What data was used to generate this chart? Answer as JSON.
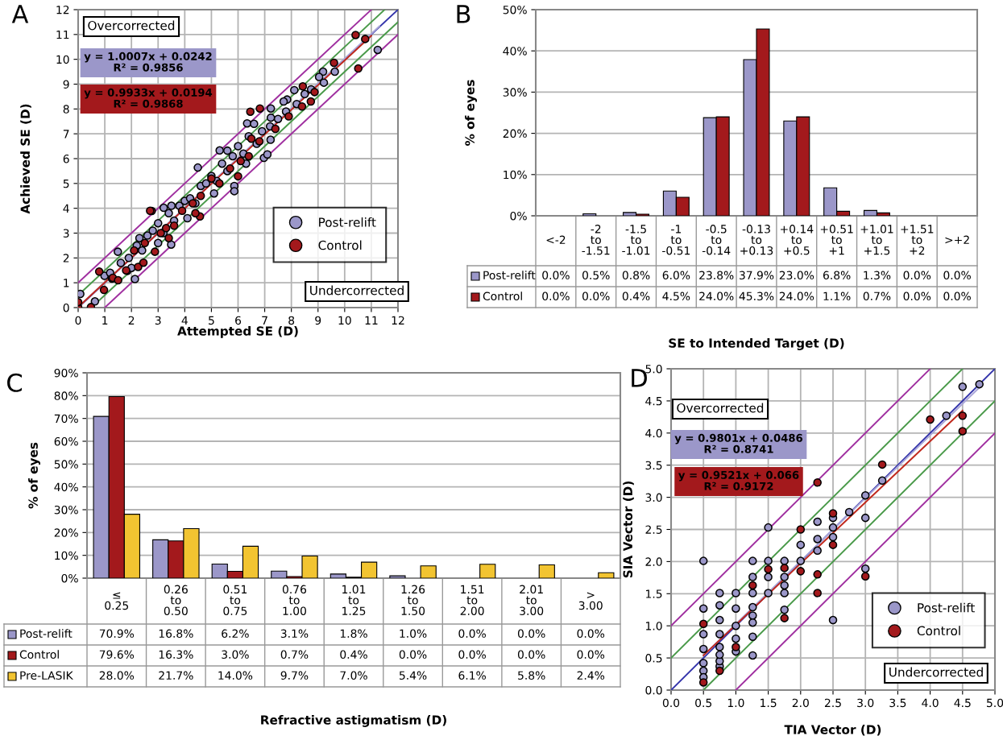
{
  "chart_data": [
    {
      "type": "scatter",
      "xlabel": "Attempted SE (D)",
      "ylabel": "Achieved SE (D)",
      "xlim": [
        0,
        12
      ],
      "ylim": [
        0,
        12
      ],
      "xticks": [
        0,
        1,
        2,
        3,
        4,
        5,
        6,
        7,
        8,
        9,
        10,
        11,
        12
      ],
      "yticks": [
        0,
        1,
        2,
        3,
        4,
        5,
        6,
        7,
        8,
        9,
        10,
        11,
        12
      ],
      "grid": true,
      "legend": "bottom right",
      "line_style": "solid",
      "annotations": [
        "A",
        "Overcorrected",
        "Undercorrected",
        "y = 1.0007x + 0.0242\nR² = 0.9856",
        "y = 0.9933x + 0.0194\nR² = 0.9868"
      ],
      "series": [
        {
          "type": "line",
          "color": "#3333aa",
          "x": [
            0,
            12
          ],
          "values": [
            0,
            12
          ]
        },
        {
          "type": "line",
          "color": "#4a9a4a",
          "x": [
            0,
            11.5
          ],
          "values": [
            0.5,
            12
          ]
        },
        {
          "type": "line",
          "color": "#4a9a4a",
          "x": [
            0.5,
            12
          ],
          "values": [
            0,
            11.5
          ]
        },
        {
          "type": "line",
          "color": "#a030a0",
          "x": [
            0,
            11
          ],
          "values": [
            1,
            12
          ]
        },
        {
          "type": "line",
          "color": "#a030a0",
          "x": [
            1,
            12
          ],
          "values": [
            0,
            11
          ]
        },
        {
          "name": "Post-relift",
          "type": "scatter",
          "marker": "circle",
          "color": "#9b97c9",
          "x": [
            11.24,
            9.63,
            9.19,
            9.04,
            9.22,
            8.74,
            8.11,
            7.84,
            7.71,
            7.23,
            7.23,
            6.34,
            7.22,
            6.97,
            7.1,
            4.49,
            5.31,
            5.6,
            5.86,
            5.86,
            3.49,
            2.13,
            3.21,
            0.08,
            0.63,
            0.99,
            1.49,
            1.27,
            1.85,
            1.2,
            1.6,
            1.9,
            2.2,
            2.4,
            2.6,
            2.8,
            3.0,
            3.2,
            3.4,
            3.6,
            3.8,
            4.0,
            4.2,
            4.4,
            4.6,
            4.8,
            5.0,
            5.2,
            5.4,
            5.6,
            5.8,
            6.0,
            6.2,
            6.4,
            6.6,
            6.7,
            6.9,
            7.2,
            7.5,
            7.8,
            8.2,
            8.5,
            3.0,
            2.0,
            4.1,
            5.1,
            6.3,
            3.5,
            2.3
          ],
          "values": [
            10.38,
            9.5,
            9.5,
            9.29,
            9.06,
            8.79,
            8.76,
            8.38,
            8.3,
            8.02,
            7.65,
            7.42,
            6.76,
            6.03,
            6.17,
            5.64,
            6.33,
            6.32,
            4.9,
            4.69,
            2.54,
            1.15,
            4.02,
            0.55,
            0.25,
            1.28,
            2.25,
            1.17,
            1.48,
            1.4,
            1.8,
            2.0,
            2.5,
            2.3,
            2.9,
            3.1,
            3.4,
            3.0,
            3.8,
            3.5,
            4.1,
            4.3,
            4.4,
            4.2,
            4.9,
            5.0,
            5.3,
            5.1,
            5.8,
            5.5,
            6.1,
            6.5,
            6.2,
            6.9,
            7.4,
            6.6,
            7.1,
            7.3,
            7.6,
            7.9,
            8.2,
            8.6,
            2.6,
            1.6,
            3.6,
            4.6,
            5.8,
            4.1,
            2.8
          ]
        },
        {
          "name": "Control",
          "type": "scatter",
          "marker": "circle",
          "color": "#a3191c",
          "x": [
            10.77,
            10.41,
            10.51,
            9.6,
            8.87,
            8.43,
            8.73,
            6.46,
            6.82,
            6.0,
            4.57,
            2.76,
            2.88,
            0.48,
            0,
            0,
            0.79,
            0.97,
            2.25,
            2.45,
            1.3,
            1.8,
            2.1,
            2.5,
            2.7,
            3.1,
            3.3,
            3.6,
            3.9,
            4.3,
            4.6,
            5.0,
            5.3,
            5.7,
            6.1,
            6.5,
            6.8,
            7.4,
            7.9,
            8.4,
            4.4,
            3.4,
            6.4,
            1.5
          ],
          "values": [
            10.82,
            10.98,
            9.63,
            9.86,
            8.68,
            8.91,
            8.3,
            7.89,
            8.02,
            5.29,
            3.67,
            3.89,
            2.25,
            0.02,
            0.02,
            0.22,
            1.45,
            0.71,
            1.64,
            1.81,
            1.2,
            1.5,
            2.3,
            2.6,
            3.9,
            3.0,
            3.2,
            3.3,
            3.9,
            4.2,
            4.5,
            5.2,
            5.0,
            5.6,
            5.9,
            6.8,
            6.7,
            7.2,
            7.7,
            8.1,
            3.8,
            2.8,
            6.1,
            1.1
          ]
        },
        {
          "type": "line",
          "color": "#a9a5d8",
          "x": [
            0,
            11.3
          ],
          "values": [
            0.02,
            11.33
          ]
        },
        {
          "type": "line",
          "color": "#c0281c",
          "x": [
            0,
            11
          ],
          "values": [
            0.02,
            10.95
          ]
        }
      ]
    },
    {
      "type": "bar",
      "xlabel": "SE to Intended Target (D)",
      "ylabel": "% of eyes",
      "ylim": [
        0,
        50
      ],
      "yticks": [
        {
          "value": 0,
          "label": "0%"
        },
        {
          "value": 10,
          "label": "10%"
        },
        {
          "value": 20,
          "label": "20%"
        },
        {
          "value": 30,
          "label": "30%"
        },
        {
          "value": 40,
          "label": "40%"
        },
        {
          "value": 50,
          "label": "50%"
        }
      ],
      "grid": "y",
      "legend": "bottom left",
      "annotations": [
        "B"
      ],
      "categories": [
        "<-2",
        "-2\nto\n-1.51",
        "-1.5\nto\n-1.01",
        "-1\nto\n-0.51",
        "-0.5\nto\n-0.14",
        "-0.13\nto\n+0.13",
        "+0.14\nto\n+0.5",
        "+0.51\nto\n+1",
        "+1.01\nto\n+1.5",
        "+1.51\nto\n+2",
        ">+2"
      ],
      "series": [
        {
          "name": "Post-relift",
          "color": "#9b97c9",
          "values": [
            0.0,
            0.5,
            0.8,
            6.0,
            23.8,
            37.9,
            23.0,
            6.8,
            1.3,
            0.0,
            0.0
          ],
          "value_labels": [
            "0.0%",
            "0.5%",
            "0.8%",
            "6.0%",
            "23.8%",
            "37.9%",
            "23.0%",
            "6.8%",
            "1.3%",
            "0.0%",
            "0.0%"
          ]
        },
        {
          "name": "Control",
          "color": "#a3191c",
          "values": [
            0.0,
            0.0,
            0.4,
            4.5,
            24.0,
            45.3,
            24.0,
            1.1,
            0.7,
            0.0,
            0.0
          ],
          "value_labels": [
            "0.0%",
            "0.0%",
            "0.4%",
            "4.5%",
            "24.0%",
            "45.3%",
            "24.0%",
            "1.1%",
            "0.7%",
            "0.0%",
            "0.0%"
          ]
        }
      ]
    },
    {
      "type": "bar",
      "xlabel": "Refractive astigmatism (D)",
      "ylabel": "% of eyes",
      "ylim": [
        0,
        90
      ],
      "yticks": [
        {
          "value": 0,
          "label": "0%"
        },
        {
          "value": 10,
          "label": "10%"
        },
        {
          "value": 20,
          "label": "20%"
        },
        {
          "value": 30,
          "label": "30%"
        },
        {
          "value": 40,
          "label": "40%"
        },
        {
          "value": 50,
          "label": "50%"
        },
        {
          "value": 60,
          "label": "60%"
        },
        {
          "value": 70,
          "label": "70%"
        },
        {
          "value": 80,
          "label": "80%"
        },
        {
          "value": 90,
          "label": "90%"
        }
      ],
      "grid": "y",
      "legend": "bottom left",
      "annotations": [
        "C"
      ],
      "categories": [
        "≤\n0.25",
        "0.26\nto\n0.50",
        "0.51\nto\n0.75",
        "0.76\nto\n1.00",
        "1.01\nto\n1.25",
        "1.26\nto\n1.50",
        "1.51\nto\n2.00",
        "2.01\nto\n3.00",
        ">\n3.00"
      ],
      "series": [
        {
          "name": "Post-relift",
          "color": "#9b97c9",
          "values": [
            70.9,
            16.8,
            6.2,
            3.1,
            1.8,
            1.0,
            0.0,
            0.0,
            0.0
          ],
          "value_labels": [
            "70.9%",
            "16.8%",
            "6.2%",
            "3.1%",
            "1.8%",
            "1.0%",
            "0.0%",
            "0.0%",
            "0.0%"
          ]
        },
        {
          "name": "Control",
          "color": "#a3191c",
          "values": [
            79.6,
            16.3,
            3.0,
            0.7,
            0.4,
            0.0,
            0.0,
            0.0,
            0.0
          ],
          "value_labels": [
            "79.6%",
            "16.3%",
            "3.0%",
            "0.7%",
            "0.4%",
            "0.0%",
            "0.0%",
            "0.0%",
            "0.0%"
          ]
        },
        {
          "name": "Pre-LASIK",
          "color": "#f2c431",
          "values": [
            28.0,
            21.7,
            14.0,
            9.7,
            7.0,
            5.4,
            6.1,
            5.8,
            2.4
          ],
          "value_labels": [
            "28.0%",
            "21.7%",
            "14.0%",
            "9.7%",
            "7.0%",
            "5.4%",
            "6.1%",
            "5.8%",
            "2.4%"
          ]
        }
      ]
    },
    {
      "type": "scatter",
      "xlabel": "TIA Vector (D)",
      "ylabel": "SIA Vector (D)",
      "xlim": [
        0,
        5
      ],
      "ylim": [
        0,
        5
      ],
      "xticks": [
        {
          "value": 0,
          "label": "0.0"
        },
        {
          "value": 0.5,
          "label": "0.5"
        },
        {
          "value": 1,
          "label": "1.0"
        },
        {
          "value": 1.5,
          "label": "1.5"
        },
        {
          "value": 2,
          "label": "2.0"
        },
        {
          "value": 2.5,
          "label": "2.5"
        },
        {
          "value": 3,
          "label": "3.0"
        },
        {
          "value": 3.5,
          "label": "3.5"
        },
        {
          "value": 4,
          "label": "4.0"
        },
        {
          "value": 4.5,
          "label": "4.5"
        },
        {
          "value": 5,
          "label": "5.0"
        }
      ],
      "yticks": [
        {
          "value": 0,
          "label": "0.0"
        },
        {
          "value": 0.5,
          "label": "0.5"
        },
        {
          "value": 1,
          "label": "1.0"
        },
        {
          "value": 1.5,
          "label": "1.5"
        },
        {
          "value": 2,
          "label": "2.0"
        },
        {
          "value": 2.5,
          "label": "2.5"
        },
        {
          "value": 3,
          "label": "3.0"
        },
        {
          "value": 3.5,
          "label": "3.5"
        },
        {
          "value": 4,
          "label": "4.0"
        },
        {
          "value": 4.5,
          "label": "4.5"
        },
        {
          "value": 5,
          "label": "5.0"
        }
      ],
      "grid": true,
      "legend": "bottom right",
      "line_style": "solid",
      "annotations": [
        "D",
        "Overcorrected",
        "Undercorrected",
        "y = 0.9801x + 0.0486\nR² = 0.8741",
        "y = 0.9521x + 0.066\nR² = 0.9172"
      ],
      "series": [
        {
          "type": "line",
          "color": "#3333aa",
          "x": [
            0,
            5
          ],
          "values": [
            0,
            5
          ]
        },
        {
          "type": "line",
          "color": "#4a9a4a",
          "x": [
            0,
            4.5
          ],
          "values": [
            0.5,
            5
          ]
        },
        {
          "type": "line",
          "color": "#4a9a4a",
          "x": [
            0.5,
            5
          ],
          "values": [
            0,
            4.5
          ]
        },
        {
          "type": "line",
          "color": "#a030a0",
          "x": [
            0,
            4
          ],
          "values": [
            1,
            5
          ]
        },
        {
          "type": "line",
          "color": "#a030a0",
          "x": [
            1,
            5
          ],
          "values": [
            0,
            4
          ]
        },
        {
          "name": "Post-relift",
          "type": "scatter",
          "marker": "circle",
          "color": "#9b97c9",
          "x": [
            4.76,
            4.5,
            4.25,
            3.26,
            3.0,
            3.0,
            3.0,
            2.75,
            2.5,
            2.5,
            2.5,
            2.5,
            2.26,
            2.26,
            2.26,
            2.0,
            2.0,
            1.5,
            1.5,
            1.5,
            1.5,
            1.75,
            1.75,
            1.75,
            1.75,
            1.75,
            1.26,
            1.26,
            1.26,
            1.26,
            1.26,
            1.26,
            1.26,
            1.26,
            1.0,
            1.0,
            1.0,
            1.0,
            1.0,
            0.75,
            0.75,
            0.75,
            0.75,
            0.75,
            0.75,
            0.75,
            0.75,
            0.5,
            0.5,
            0.5,
            0.5,
            0.5,
            0.5,
            0.5
          ],
          "values": [
            4.76,
            4.72,
            4.27,
            3.26,
            3.03,
            2.68,
            1.89,
            2.77,
            2.68,
            2.53,
            2.38,
            1.09,
            2.62,
            2.35,
            2.17,
            2.26,
            2.01,
            2.53,
            2.01,
            1.76,
            1.51,
            2.01,
            1.76,
            1.63,
            1.51,
            1.25,
            2.01,
            1.76,
            1.51,
            1.29,
            1.16,
            1.05,
            0.83,
            0.54,
            1.51,
            1.27,
            1.0,
            0.8,
            0.6,
            1.51,
            1.32,
            1.09,
            0.87,
            0.67,
            0.37,
            0.45,
            0.55,
            2.01,
            1.27,
            0.87,
            0.64,
            0.42,
            0.3,
            0.2
          ]
        },
        {
          "name": "Control",
          "type": "scatter",
          "marker": "circle",
          "color": "#a3191c",
          "x": [
            4.5,
            4.5,
            4.0,
            3.26,
            2.26,
            3.0,
            2.5,
            2.5,
            2.26,
            2.26,
            2.0,
            2.0,
            1.5,
            1.75,
            1.75,
            1.26,
            1.0,
            0.5,
            0.5,
            0.75
          ],
          "values": [
            4.27,
            4.03,
            4.21,
            3.51,
            3.23,
            1.77,
            2.75,
            2.26,
            1.8,
            1.51,
            2.5,
            1.85,
            1.88,
            1.9,
            1.12,
            1.63,
            0.67,
            1.03,
            0.12,
            0.3
          ]
        },
        {
          "type": "line",
          "color": "#a9a5d8",
          "x": [
            0.5,
            4.75
          ],
          "values": [
            0.54,
            4.7
          ]
        },
        {
          "type": "line",
          "color": "#c0281c",
          "x": [
            0.5,
            4.5
          ],
          "values": [
            0.54,
            4.35
          ]
        }
      ]
    }
  ]
}
